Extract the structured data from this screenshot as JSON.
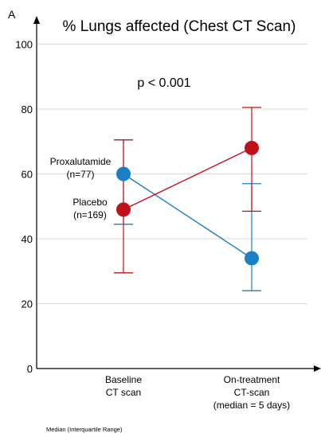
{
  "panel_label": "A",
  "note": "p < 0.001",
  "footnote": "Median (Interquartile Range)",
  "chart_data": {
    "type": "line",
    "title": "% Lungs affected (Chest CT Scan)",
    "xlabel": "",
    "ylabel": "",
    "ylim": [
      0,
      100
    ],
    "y_ticks": [
      0,
      20,
      40,
      60,
      80,
      100
    ],
    "grid": true,
    "categories": [
      [
        "Baseline",
        "CT scan"
      ],
      [
        "On-treatment",
        "CT-scan",
        "(median = 5 days)"
      ]
    ],
    "series": [
      {
        "name": "Proxalutamide",
        "label_lines": [
          "Proxalutamide",
          "(n=77)"
        ],
        "color": "#1a7fc4",
        "values": [
          60,
          34
        ],
        "iqr_low": [
          44.5,
          24
        ],
        "iqr_high": [
          70.5,
          57
        ]
      },
      {
        "name": "Placebo",
        "label_lines": [
          "Placebo",
          "(n=169)"
        ],
        "color": "#c0101a",
        "values": [
          49,
          68
        ],
        "iqr_low": [
          29.5,
          48.5
        ],
        "iqr_high": [
          70.5,
          80.5
        ]
      }
    ]
  }
}
